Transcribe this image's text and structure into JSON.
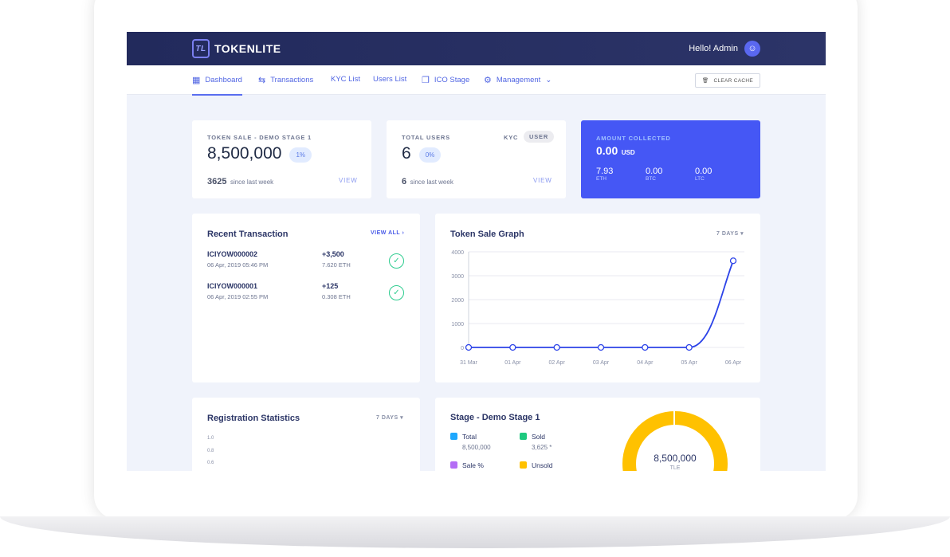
{
  "header": {
    "logo": "TOKENLITE",
    "greeting": "Hello! Admin"
  },
  "nav": {
    "items": [
      {
        "label": "Dashboard",
        "icon": "grid-icon"
      },
      {
        "label": "Transactions",
        "icon": "arrows-icon"
      },
      {
        "label": "KYC List"
      },
      {
        "label": "Users List"
      },
      {
        "label": "ICO Stage",
        "icon": "coins-icon"
      },
      {
        "label": "Management",
        "icon": "gear-icon"
      }
    ],
    "clear_cache": "CLEAR CACHE"
  },
  "token_sale": {
    "label": "TOKEN SALE - DEMO STAGE 1",
    "value": "8,500,000",
    "pct": "1%",
    "since_value": "3625",
    "since_text": "since last week",
    "view": "VIEW"
  },
  "total_users": {
    "label": "TOTAL USERS",
    "value": "6",
    "pct": "0%",
    "since_value": "6",
    "since_text": "since last week",
    "view": "VIEW",
    "tab_kyc": "KYC",
    "tab_user": "USER"
  },
  "amount": {
    "label": "AMOUNT COLLECTED",
    "value": "0.00",
    "unit": "USD",
    "currencies": [
      {
        "value": "7.93",
        "code": "ETH"
      },
      {
        "value": "0.00",
        "code": "BTC"
      },
      {
        "value": "0.00",
        "code": "LTC"
      }
    ],
    "color": "#4557f5"
  },
  "recent": {
    "title": "Recent Transaction",
    "view_all": "VIEW ALL",
    "items": [
      {
        "id": "ICIYOW000002",
        "date": "06 Apr, 2019 05:46 PM",
        "amount": "+3,500",
        "eth": "7.620 ETH"
      },
      {
        "id": "ICIYOW000001",
        "date": "06 Apr, 2019 02:55 PM",
        "amount": "+125",
        "eth": "0.308 ETH"
      }
    ]
  },
  "graph": {
    "title": "Token Sale Graph",
    "range": "7 DAYS"
  },
  "chart_data": {
    "type": "line",
    "categories": [
      "31 Mar",
      "01 Apr",
      "02 Apr",
      "03 Apr",
      "04 Apr",
      "05 Apr",
      "06 Apr"
    ],
    "values": [
      0,
      0,
      0,
      0,
      0,
      0,
      3625
    ],
    "yticks": [
      "0",
      "1000",
      "2000",
      "3000",
      "4000"
    ],
    "ylim": [
      0,
      4000
    ],
    "grid": true,
    "color": "#2c43e8"
  },
  "registration": {
    "title": "Registration Statistics",
    "range": "7 DAYS",
    "yticks": [
      "1.0",
      "0.8",
      "0.6"
    ]
  },
  "stage": {
    "title": "Stage - Demo Stage 1",
    "legend": [
      {
        "label": "Total",
        "value": "8,500,000",
        "color": "#1ea7fd"
      },
      {
        "label": "Sold",
        "value": "3,625 *",
        "color": "#1ec97f"
      },
      {
        "label": "Sale %",
        "value": "",
        "color": "#b46ef5"
      },
      {
        "label": "Unsold",
        "value": "",
        "color": "#ffc100"
      }
    ],
    "donut_value": "8,500,000",
    "donut_unit": "TLE"
  }
}
